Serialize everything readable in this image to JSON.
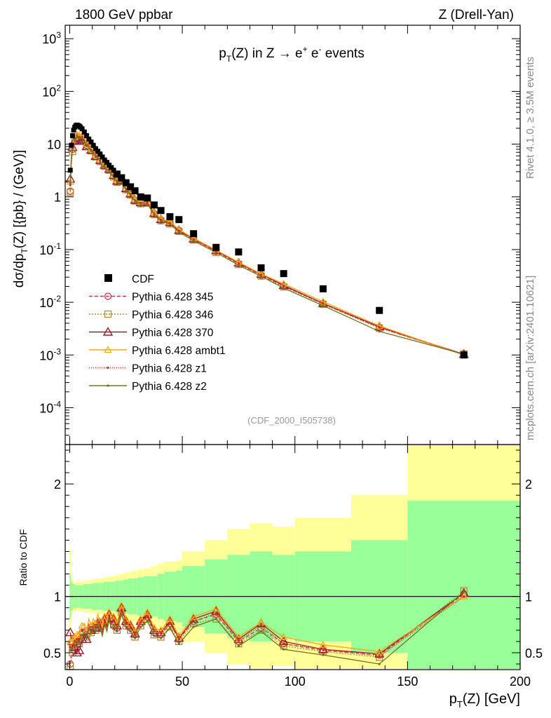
{
  "header": {
    "left": "1800 GeV ppbar",
    "right": "Z (Drell-Yan)",
    "side_top": "Rivet 4.1.0, ≥ 3.5M events",
    "side_bottom": "mcplots.cern.ch [arXiv:2401.10621]"
  },
  "chart_data": [
    {
      "type": "scatter",
      "name": "main",
      "title": "pT(Z) in Z → e+ e- events",
      "title_parts": {
        "p": "p",
        "sub_T": "T",
        "rest": "(Z) in Z →  e",
        "sup_plus": "+",
        "e2": " e",
        "sup_minus": "-",
        "events": " events"
      },
      "analysis_id": "(CDF_2000_I505738)",
      "ylabel": "dσ/dp_T(Z) [{pb} / (GeV)]",
      "ylabel_parts": {
        "a": "dσ/dp",
        "sub": "T",
        "b": "(Z) [{pb} / (GeV)]"
      },
      "yscale": "log",
      "ylim": [
        2e-05,
        1800
      ],
      "xlim": [
        -2,
        200
      ],
      "ytick_labels": [
        {
          "mant": "10",
          "exp": "-4",
          "value": 0.0001
        },
        {
          "mant": "10",
          "exp": "-3",
          "value": 0.001
        },
        {
          "mant": "10",
          "exp": "-2",
          "value": 0.01
        },
        {
          "mant": "10",
          "exp": "-1",
          "value": 0.1
        },
        {
          "mant": "1",
          "exp": "",
          "value": 1
        },
        {
          "mant": "10",
          "exp": "",
          "value": 10
        },
        {
          "mant": "10",
          "exp": "2",
          "value": 100
        },
        {
          "mant": "10",
          "exp": "3",
          "value": 1000
        }
      ],
      "x": [
        0.25,
        0.75,
        1.25,
        1.75,
        2.25,
        2.75,
        3.25,
        3.75,
        4.25,
        4.75,
        5.5,
        6.5,
        7.5,
        8.5,
        9.5,
        10.5,
        11.5,
        12.5,
        13.5,
        14.5,
        15.5,
        16.5,
        17.5,
        18.5,
        19.5,
        21,
        23,
        25,
        27,
        29,
        31.5,
        34.5,
        37.5,
        40.5,
        44.5,
        48.5,
        55,
        65,
        75,
        85,
        95,
        112.5,
        137.5,
        175
      ],
      "cdf": [
        3.2,
        9.5,
        14.5,
        18.5,
        21,
        22.5,
        23,
        22.5,
        22,
        21,
        19.5,
        17,
        14.5,
        12.5,
        11,
        9.5,
        8.2,
        7.3,
        6.5,
        5.7,
        5.0,
        4.5,
        4.0,
        3.6,
        3.2,
        2.7,
        2.3,
        1.85,
        1.55,
        1.3,
        1.0,
        0.95,
        0.7,
        0.55,
        0.42,
        0.37,
        0.2,
        0.11,
        0.09,
        0.045,
        0.035,
        0.018,
        0.007,
        0.001
      ],
      "series": [
        {
          "name": "Pythia 6.428 345",
          "color": "#c0394b",
          "dash": "5,3",
          "marker": "circle-open",
          "scale": 1.0
        },
        {
          "name": "Pythia 6.428 346",
          "color": "#b08a3e",
          "dash": "2,2",
          "marker": "square-open",
          "scale": 0.98
        },
        {
          "name": "Pythia 6.428 370",
          "color": "#9c1b2e",
          "dash": "",
          "marker": "triangle-open",
          "scale": 1.02
        },
        {
          "name": "Pythia 6.428 ambt1",
          "color": "#f4a90e",
          "dash": "",
          "marker": "triangle-open-small",
          "scale": 1.06
        },
        {
          "name": "Pythia 6.428 z1",
          "color": "#e3221d",
          "dash": "1,2",
          "marker": "dot",
          "scale": 1.0
        },
        {
          "name": "Pythia 6.428 z2",
          "color": "#6f7320",
          "dash": "",
          "marker": "dot",
          "scale": 0.95
        }
      ],
      "legend": {
        "data_label": "CDF",
        "placement": "lower-left"
      }
    },
    {
      "type": "line",
      "name": "ratio",
      "ylabel": "Ratio to CDF",
      "xlabel": "p_T(Z) [GeV]",
      "xlabel_parts": {
        "p": "p",
        "sub": "T",
        "rest": "(Z) [GeV]"
      },
      "ylim": [
        0.35,
        2.35
      ],
      "xlim": [
        -2,
        200
      ],
      "yticks": [
        0.5,
        1,
        2
      ],
      "ytick_labels": [
        "0.5",
        "1",
        "2"
      ],
      "xticks": [
        0,
        50,
        100,
        150,
        200
      ],
      "xtick_labels": [
        "0",
        "50",
        "100",
        "150",
        "200"
      ],
      "x_low": [
        0,
        0.5,
        1,
        1.5,
        2,
        2.5,
        3,
        3.5,
        4,
        4.5,
        5,
        6,
        7,
        8,
        9,
        10,
        11,
        12,
        13,
        14,
        15,
        16,
        17,
        18,
        19,
        20,
        22,
        24,
        26,
        28,
        30,
        33,
        36,
        39,
        42,
        47,
        50,
        60,
        70,
        80,
        90,
        100,
        125,
        150
      ],
      "x_high": [
        0.5,
        1,
        1.5,
        2,
        2.5,
        3,
        3.5,
        4,
        4.5,
        5,
        6,
        7,
        8,
        9,
        10,
        11,
        12,
        13,
        14,
        15,
        16,
        17,
        18,
        19,
        20,
        22,
        24,
        26,
        28,
        30,
        33,
        36,
        39,
        42,
        47,
        50,
        60,
        70,
        80,
        90,
        100,
        125,
        150,
        200
      ],
      "band_stat_half": [
        0.2,
        0.13,
        0.12,
        0.11,
        0.11,
        0.1,
        0.1,
        0.1,
        0.1,
        0.1,
        0.1,
        0.11,
        0.11,
        0.11,
        0.11,
        0.12,
        0.12,
        0.12,
        0.12,
        0.12,
        0.13,
        0.13,
        0.13,
        0.13,
        0.13,
        0.14,
        0.14,
        0.15,
        0.16,
        0.16,
        0.17,
        0.18,
        0.18,
        0.2,
        0.22,
        0.23,
        0.27,
        0.33,
        0.37,
        0.4,
        0.37,
        0.4,
        0.5,
        0.85
      ],
      "band_tot_half": [
        0.42,
        0.18,
        0.15,
        0.14,
        0.14,
        0.13,
        0.13,
        0.13,
        0.13,
        0.13,
        0.13,
        0.14,
        0.14,
        0.14,
        0.15,
        0.15,
        0.16,
        0.16,
        0.16,
        0.16,
        0.17,
        0.17,
        0.18,
        0.18,
        0.18,
        0.19,
        0.2,
        0.21,
        0.22,
        0.23,
        0.24,
        0.25,
        0.27,
        0.29,
        0.31,
        0.32,
        0.4,
        0.5,
        0.6,
        0.65,
        0.62,
        0.7,
        0.9,
        1.5
      ],
      "series_values": [
        [
          0.4,
          0.5,
          0.55,
          0.52,
          0.55,
          0.58,
          0.6,
          0.62,
          0.6,
          0.65,
          0.68,
          0.72,
          0.66,
          0.75,
          0.7,
          0.76,
          0.72,
          0.8,
          0.74,
          0.68,
          0.78,
          0.72,
          0.82,
          0.75,
          0.78,
          0.72,
          0.88,
          0.76,
          0.72,
          0.66,
          0.76,
          0.82,
          0.68,
          0.66,
          0.76,
          0.62,
          0.78,
          0.84,
          0.6,
          0.72,
          0.58,
          0.52,
          0.48,
          1.02
        ],
        [
          0.38,
          0.44,
          0.5,
          0.48,
          0.54,
          0.56,
          0.58,
          0.6,
          0.58,
          0.62,
          0.66,
          0.7,
          0.64,
          0.72,
          0.68,
          0.74,
          0.7,
          0.78,
          0.72,
          0.66,
          0.76,
          0.7,
          0.8,
          0.72,
          0.75,
          0.7,
          0.86,
          0.74,
          0.7,
          0.64,
          0.74,
          0.8,
          0.66,
          0.64,
          0.73,
          0.6,
          0.76,
          0.8,
          0.58,
          0.7,
          0.56,
          0.51,
          0.46,
          1.05
        ],
        [
          0.68,
          0.62,
          0.6,
          0.56,
          0.55,
          0.5,
          0.5,
          0.52,
          0.52,
          0.55,
          0.62,
          0.66,
          0.62,
          0.74,
          0.7,
          0.76,
          0.72,
          0.8,
          0.76,
          0.7,
          0.8,
          0.74,
          0.84,
          0.77,
          0.8,
          0.74,
          0.9,
          0.78,
          0.74,
          0.67,
          0.78,
          0.84,
          0.7,
          0.68,
          0.78,
          0.63,
          0.8,
          0.87,
          0.62,
          0.76,
          0.6,
          0.53,
          0.49,
          1.03
        ],
        [
          0.6,
          0.62,
          0.6,
          0.62,
          0.64,
          0.64,
          0.66,
          0.68,
          0.66,
          0.7,
          0.74,
          0.76,
          0.7,
          0.8,
          0.74,
          0.8,
          0.76,
          0.84,
          0.78,
          0.72,
          0.82,
          0.76,
          0.86,
          0.79,
          0.82,
          0.76,
          0.92,
          0.8,
          0.76,
          0.69,
          0.8,
          0.86,
          0.72,
          0.7,
          0.8,
          0.65,
          0.82,
          0.89,
          0.64,
          0.77,
          0.64,
          0.57,
          0.51,
          1.0
        ],
        [
          0.55,
          0.58,
          0.57,
          0.58,
          0.6,
          0.6,
          0.62,
          0.64,
          0.62,
          0.66,
          0.7,
          0.72,
          0.66,
          0.76,
          0.7,
          0.77,
          0.73,
          0.8,
          0.75,
          0.69,
          0.79,
          0.73,
          0.83,
          0.76,
          0.79,
          0.73,
          0.88,
          0.77,
          0.73,
          0.66,
          0.77,
          0.82,
          0.69,
          0.67,
          0.76,
          0.62,
          0.78,
          0.85,
          0.61,
          0.74,
          0.58,
          0.53,
          0.47,
          1.0
        ],
        [
          0.52,
          0.54,
          0.54,
          0.55,
          0.57,
          0.57,
          0.59,
          0.61,
          0.59,
          0.63,
          0.66,
          0.68,
          0.63,
          0.72,
          0.67,
          0.73,
          0.69,
          0.76,
          0.71,
          0.65,
          0.75,
          0.69,
          0.79,
          0.72,
          0.75,
          0.69,
          0.84,
          0.73,
          0.69,
          0.63,
          0.73,
          0.78,
          0.65,
          0.63,
          0.72,
          0.58,
          0.73,
          0.8,
          0.56,
          0.69,
          0.53,
          0.48,
          0.4,
          1.04
        ]
      ]
    }
  ]
}
